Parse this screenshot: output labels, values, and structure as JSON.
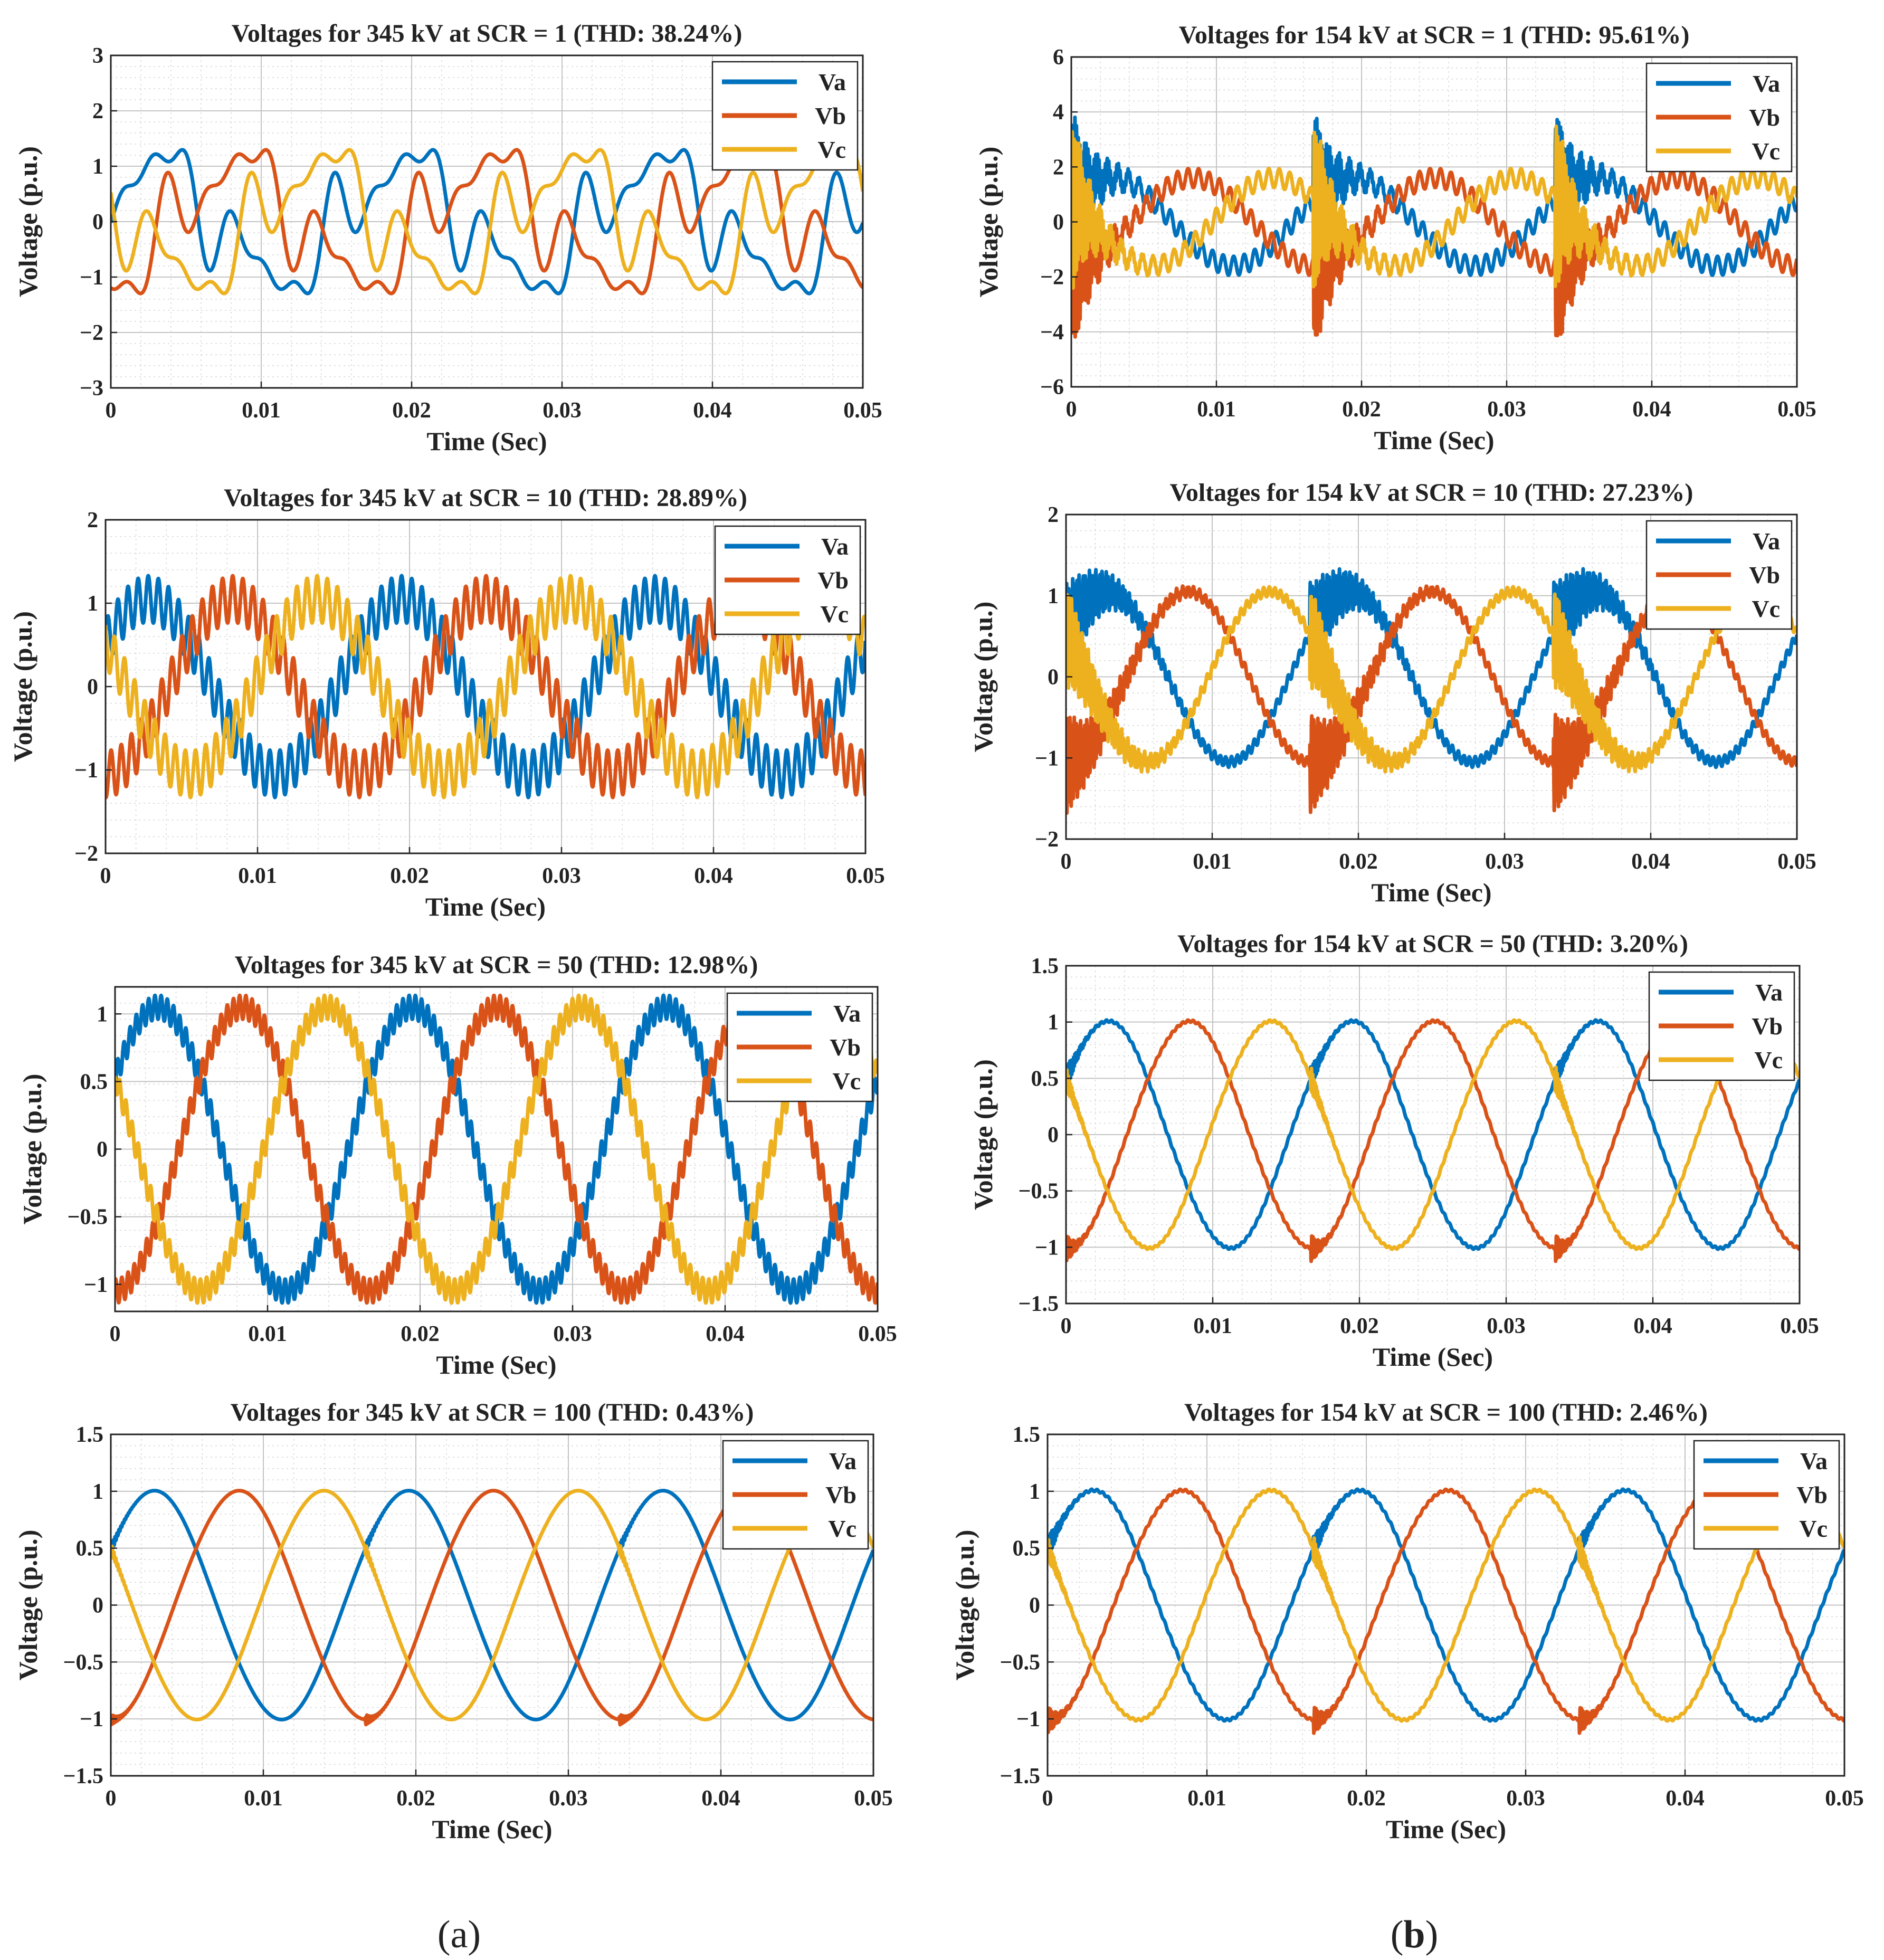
{
  "figure": {
    "sublabel_a_open": "(",
    "sublabel_a_letter": "a",
    "sublabel_a_close": ")",
    "sublabel_b_open": "(",
    "sublabel_b_letter": "b",
    "sublabel_b_close": ")"
  },
  "chart_data": [
    {
      "type": "line",
      "title": "Voltages for 345 kV at SCR = 1 (THD: 38.24%)",
      "xlabel": "Time (Sec)",
      "ylabel": "Voltage (p.u.)",
      "xlim": [
        0,
        0.05
      ],
      "ylim": [
        -3,
        3
      ],
      "xticks": [
        0,
        0.01,
        0.02,
        0.03,
        0.04,
        0.05
      ],
      "yticks": [
        -3,
        -2,
        -1,
        0,
        1,
        2,
        3
      ],
      "grid": true,
      "legend": "top-right",
      "series": [
        {
          "name": "Va",
          "color": "#0072BD"
        },
        {
          "name": "Vb",
          "color": "#D95319"
        },
        {
          "name": "Vc",
          "color": "#EDB120"
        }
      ],
      "model": {
        "period": 0.01667,
        "amp": 1.0,
        "h": [
          [
            3,
            0.45
          ],
          [
            5,
            0.35
          ],
          [
            7,
            0.25
          ]
        ]
      }
    },
    {
      "type": "line",
      "title": "Voltages for 154 kV at SCR = 1 (THD: 95.61%)",
      "xlabel": "Time (Sec)",
      "ylabel": "Voltage (p.u.)",
      "xlim": [
        0,
        0.05
      ],
      "ylim": [
        -6,
        6
      ],
      "xticks": [
        0,
        0.01,
        0.02,
        0.03,
        0.04,
        0.05
      ],
      "yticks": [
        -6,
        -4,
        -2,
        0,
        2,
        4,
        6
      ],
      "grid": true,
      "legend": "top-right",
      "series": [
        {
          "name": "Va",
          "color": "#0072BD"
        },
        {
          "name": "Vb",
          "color": "#D95319"
        },
        {
          "name": "Vc",
          "color": "#EDB120"
        }
      ],
      "model": {
        "period": 0.01667,
        "amp": 1.6,
        "h": [
          [
            23,
            0.35
          ]
        ],
        "burst": [
          3.2,
          0.0012,
          9000
        ]
      }
    },
    {
      "type": "line",
      "title": "Voltages for 345 kV at SCR = 10 (THD: 28.89%)",
      "xlabel": "Time (Sec)",
      "ylabel": "Voltage (p.u.)",
      "xlim": [
        0,
        0.05
      ],
      "ylim": [
        -2,
        2
      ],
      "xticks": [
        0,
        0.01,
        0.02,
        0.03,
        0.04,
        0.05
      ],
      "yticks": [
        -2,
        -1,
        0,
        1,
        2
      ],
      "grid": true,
      "legend": "top-right",
      "series": [
        {
          "name": "Va",
          "color": "#0072BD"
        },
        {
          "name": "Vb",
          "color": "#D95319"
        },
        {
          "name": "Vc",
          "color": "#EDB120"
        }
      ],
      "model": {
        "period": 0.01667,
        "amp": 1.05,
        "h": [
          [
            25,
            0.28
          ]
        ]
      }
    },
    {
      "type": "line",
      "title": "Voltages for 154 kV at SCR = 10 (THD: 27.23%)",
      "xlabel": "Time (Sec)",
      "ylabel": "Voltage (p.u.)",
      "xlim": [
        0,
        0.05
      ],
      "ylim": [
        -2,
        2
      ],
      "xticks": [
        0,
        0.01,
        0.02,
        0.03,
        0.04,
        0.05
      ],
      "yticks": [
        -2,
        -1,
        0,
        1,
        2
      ],
      "grid": true,
      "legend": "top-right",
      "series": [
        {
          "name": "Va",
          "color": "#0072BD"
        },
        {
          "name": "Vb",
          "color": "#D95319"
        },
        {
          "name": "Vc",
          "color": "#EDB120"
        }
      ],
      "model": {
        "period": 0.01667,
        "amp": 1.05,
        "h": [
          [
            43,
            0.06
          ]
        ],
        "burst": [
          0.6,
          0.0025,
          7000
        ]
      }
    },
    {
      "type": "line",
      "title": "Voltages for 345 kV at SCR = 50 (THD: 12.98%)",
      "xlabel": "Time (Sec)",
      "ylabel": "Voltage (p.u.)",
      "xlim": [
        0,
        0.05
      ],
      "ylim": [
        -1.2,
        1.2
      ],
      "xticks": [
        0,
        0.01,
        0.02,
        0.03,
        0.04,
        0.05
      ],
      "yticks": [
        -1,
        -0.5,
        0,
        0.5,
        1
      ],
      "grid": true,
      "legend": "top-right",
      "series": [
        {
          "name": "Va",
          "color": "#0072BD"
        },
        {
          "name": "Vb",
          "color": "#D95319"
        },
        {
          "name": "Vc",
          "color": "#EDB120"
        }
      ],
      "model": {
        "period": 0.01667,
        "amp": 1.05,
        "h": [
          [
            41,
            0.09
          ]
        ]
      }
    },
    {
      "type": "line",
      "title": "Voltages for 154 kV at SCR = 50 (THD: 3.20%)",
      "xlabel": "Time (Sec)",
      "ylabel": "Voltage (p.u.)",
      "xlim": [
        0,
        0.05
      ],
      "ylim": [
        -1.5,
        1.5
      ],
      "xticks": [
        0,
        0.01,
        0.02,
        0.03,
        0.04,
        0.05
      ],
      "yticks": [
        -1.5,
        -1,
        -0.5,
        0,
        0.5,
        1,
        1.5
      ],
      "grid": true,
      "legend": "top-right",
      "series": [
        {
          "name": "Va",
          "color": "#0072BD"
        },
        {
          "name": "Vb",
          "color": "#D95319"
        },
        {
          "name": "Vc",
          "color": "#EDB120"
        }
      ],
      "model": {
        "period": 0.01667,
        "amp": 1.0,
        "h": [
          [
            3,
            0.015
          ],
          [
            47,
            0.01
          ]
        ],
        "burst": [
          0.12,
          0.0006,
          12000
        ]
      }
    },
    {
      "type": "line",
      "title": "Voltages for 345 kV at SCR = 100 (THD: 0.43%)",
      "xlabel": "Time (Sec)",
      "ylabel": "Voltage (p.u.)",
      "xlim": [
        0,
        0.05
      ],
      "ylim": [
        -1.5,
        1.5
      ],
      "xticks": [
        0,
        0.01,
        0.02,
        0.03,
        0.04,
        0.05
      ],
      "yticks": [
        -1.5,
        -1,
        -0.5,
        0,
        0.5,
        1,
        1.5
      ],
      "grid": true,
      "legend": "top-right",
      "series": [
        {
          "name": "Va",
          "color": "#0072BD"
        },
        {
          "name": "Vb",
          "color": "#D95319"
        },
        {
          "name": "Vc",
          "color": "#EDB120"
        }
      ],
      "model": {
        "period": 0.01667,
        "amp": 1.0,
        "h": [
          [
            3,
            0.01
          ]
        ],
        "burst": [
          0.05,
          0.0005,
          8000
        ]
      }
    },
    {
      "type": "line",
      "title": "Voltages for 154 kV at SCR = 100 (THD: 2.46%)",
      "xlabel": "Time (Sec)",
      "ylabel": "Voltage (p.u.)",
      "xlim": [
        0,
        0.05
      ],
      "ylim": [
        -1.5,
        1.5
      ],
      "xticks": [
        0,
        0.01,
        0.02,
        0.03,
        0.04,
        0.05
      ],
      "yticks": [
        -1.5,
        -1,
        -0.5,
        0,
        0.5,
        1,
        1.5
      ],
      "grid": true,
      "legend": "top-right",
      "series": [
        {
          "name": "Va",
          "color": "#0072BD"
        },
        {
          "name": "Vb",
          "color": "#D95319"
        },
        {
          "name": "Vc",
          "color": "#EDB120"
        }
      ],
      "model": {
        "period": 0.01667,
        "amp": 1.0,
        "h": [
          [
            3,
            0.015
          ],
          [
            47,
            0.01
          ]
        ],
        "burst": [
          0.12,
          0.0006,
          12000
        ]
      }
    }
  ]
}
